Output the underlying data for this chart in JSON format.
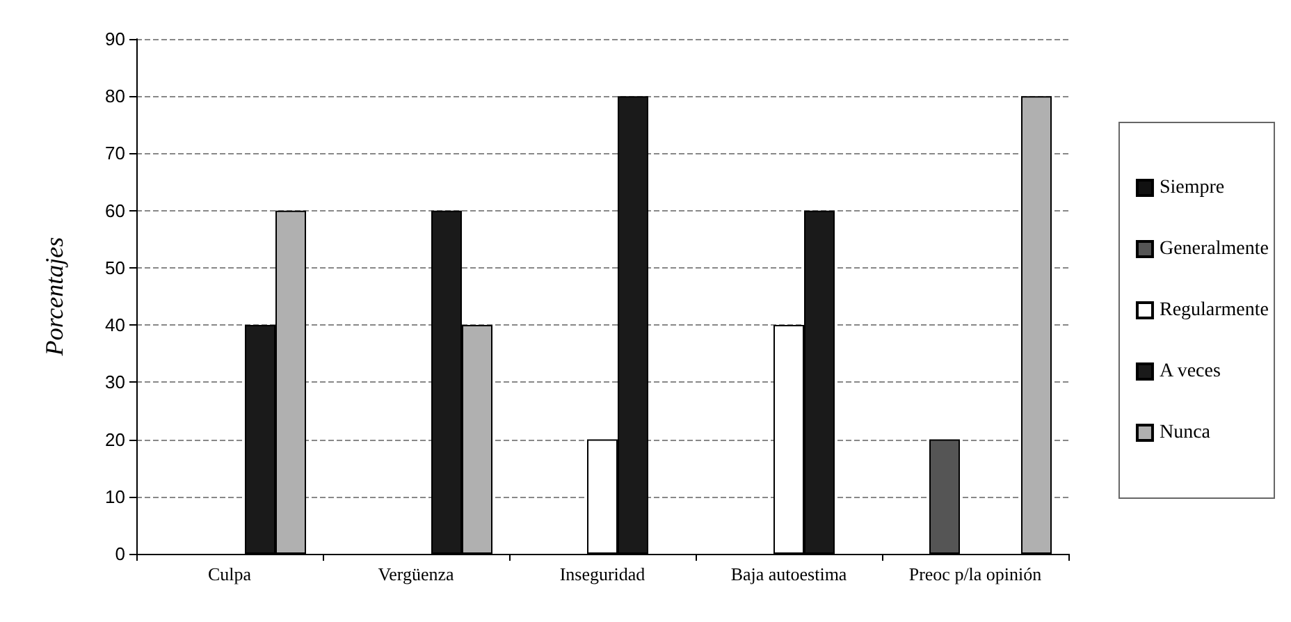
{
  "chart_data": {
    "type": "bar",
    "ylabel": "Porcentajes",
    "categories": [
      "Culpa",
      "Vergüenza",
      "Inseguridad",
      "Baja autoestima",
      "Preoc p/la opinión"
    ],
    "series": [
      {
        "name": "Siempre",
        "color": "#111111",
        "values": [
          null,
          null,
          null,
          null,
          null
        ]
      },
      {
        "name": "Generalmente",
        "color": "#555555",
        "values": [
          null,
          null,
          null,
          null,
          20
        ]
      },
      {
        "name": "Regularmente",
        "color": "#ffffff",
        "values": [
          null,
          null,
          20,
          40,
          null
        ]
      },
      {
        "name": "A veces",
        "color": "#1a1a1a",
        "values": [
          40,
          60,
          80,
          60,
          null
        ]
      },
      {
        "name": "Nunca",
        "color": "#b0b0b0",
        "values": [
          60,
          40,
          null,
          null,
          80
        ]
      }
    ],
    "ylim": [
      0,
      90
    ],
    "yticks": [
      0,
      10,
      20,
      30,
      40,
      50,
      60,
      70,
      80,
      90
    ],
    "grid": "y",
    "legend": "right"
  }
}
